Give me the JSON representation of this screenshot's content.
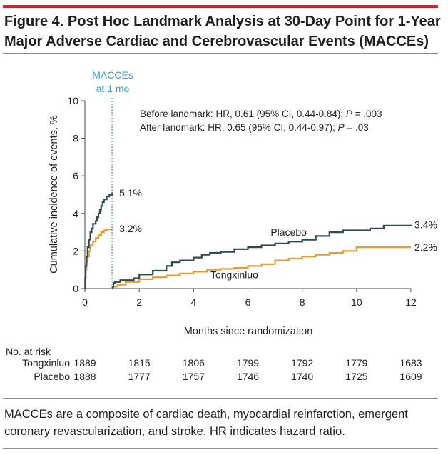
{
  "header": {
    "title": "Figure 4. Post Hoc Landmark Analysis at 30-Day Point for 1-Year Major Adverse Cardiac and Cerebrovascular Events (MACCEs)"
  },
  "footer": {
    "note": "MACCEs are a composite of cardiac death, myocardial reinfarction, emergent coronary revascularization, and stroke. HR indicates hazard ratio."
  },
  "colors": {
    "accent": "#d6202a",
    "placebo": "#2e4a52",
    "tongxinluo": "#e59a33",
    "landmark": "#3aa0c9"
  },
  "chart_data": {
    "type": "line",
    "title": "",
    "xlabel": "Months since randomization",
    "ylabel": "Cumulative incidence of events, %",
    "xlim": [
      0,
      12
    ],
    "ylim": [
      0,
      10
    ],
    "xticks": [
      "0",
      "2",
      "4",
      "6",
      "8",
      "10",
      "12"
    ],
    "yticks": [
      "0",
      "2",
      "4",
      "6",
      "8",
      "10"
    ],
    "landmark": {
      "x": 1,
      "label_line1": "MACCEs",
      "label_line2": "at 1 mo"
    },
    "annotations": {
      "before_prefix": "Before landmark: HR, 0.61 (95% CI, 0.44-0.84); ",
      "before_p_italic": "P",
      "before_p_rest": " = .003",
      "after_prefix": "After landmark: HR, 0.65 (95% CI, 0.44-0.97); ",
      "after_p_italic": "P",
      "after_p_rest": " = .03"
    },
    "series": [
      {
        "name": "Placebo",
        "color": "#2e4a52",
        "end_label_early": "5.1%",
        "end_label_late": "3.4%",
        "early": [
          [
            0,
            0
          ],
          [
            0.01,
            0.6
          ],
          [
            0.03,
            1.2
          ],
          [
            0.06,
            1.7
          ],
          [
            0.1,
            2.2
          ],
          [
            0.15,
            2.6
          ],
          [
            0.2,
            3.0
          ],
          [
            0.25,
            3.2
          ],
          [
            0.3,
            3.45
          ],
          [
            0.4,
            3.6
          ],
          [
            0.45,
            3.8
          ],
          [
            0.5,
            4.0
          ],
          [
            0.55,
            4.2
          ],
          [
            0.6,
            4.4
          ],
          [
            0.65,
            4.6
          ],
          [
            0.7,
            4.75
          ],
          [
            0.8,
            4.9
          ],
          [
            0.9,
            5.0
          ],
          [
            1.0,
            5.1
          ]
        ],
        "late": [
          [
            1.0,
            0
          ],
          [
            1.02,
            0.1
          ],
          [
            1.05,
            0.3
          ],
          [
            1.1,
            0.35
          ],
          [
            1.3,
            0.45
          ],
          [
            1.8,
            0.55
          ],
          [
            2.0,
            0.75
          ],
          [
            2.5,
            0.95
          ],
          [
            3.0,
            1.2
          ],
          [
            3.2,
            1.4
          ],
          [
            3.5,
            1.5
          ],
          [
            4.0,
            1.65
          ],
          [
            4.3,
            1.8
          ],
          [
            4.6,
            1.9
          ],
          [
            5.0,
            1.95
          ],
          [
            5.5,
            2.1
          ],
          [
            6.0,
            2.2
          ],
          [
            6.5,
            2.3
          ],
          [
            7.0,
            2.4
          ],
          [
            7.5,
            2.5
          ],
          [
            8.0,
            2.6
          ],
          [
            8.5,
            2.8
          ],
          [
            9.0,
            3.0
          ],
          [
            9.5,
            3.1
          ],
          [
            10.0,
            3.1
          ],
          [
            10.5,
            3.2
          ],
          [
            11.0,
            3.35
          ],
          [
            12.0,
            3.4
          ]
        ]
      },
      {
        "name": "Tongxinluo",
        "color": "#e59a33",
        "end_label_early": "3.2%",
        "end_label_late": "2.2%",
        "early": [
          [
            0,
            0
          ],
          [
            0.01,
            0.5
          ],
          [
            0.03,
            1.0
          ],
          [
            0.06,
            1.4
          ],
          [
            0.1,
            1.7
          ],
          [
            0.15,
            2.0
          ],
          [
            0.2,
            2.3
          ],
          [
            0.3,
            2.5
          ],
          [
            0.4,
            2.7
          ],
          [
            0.5,
            2.85
          ],
          [
            0.6,
            3.0
          ],
          [
            0.7,
            3.1
          ],
          [
            0.8,
            3.15
          ],
          [
            1.0,
            3.2
          ]
        ],
        "late": [
          [
            1.0,
            0
          ],
          [
            1.05,
            0.1
          ],
          [
            1.2,
            0.2
          ],
          [
            1.5,
            0.35
          ],
          [
            2.0,
            0.5
          ],
          [
            2.5,
            0.6
          ],
          [
            3.0,
            0.7
          ],
          [
            3.5,
            0.8
          ],
          [
            4.0,
            0.9
          ],
          [
            4.5,
            1.0
          ],
          [
            5.0,
            1.05
          ],
          [
            5.5,
            1.1
          ],
          [
            6.0,
            1.2
          ],
          [
            6.5,
            1.3
          ],
          [
            7.0,
            1.5
          ],
          [
            7.5,
            1.6
          ],
          [
            8.0,
            1.7
          ],
          [
            8.5,
            1.8
          ],
          [
            9.0,
            1.9
          ],
          [
            9.5,
            2.0
          ],
          [
            10.0,
            2.2
          ],
          [
            12.0,
            2.2
          ]
        ]
      }
    ],
    "series_labels": [
      {
        "text": "Placebo",
        "x": 7.5,
        "y": 3.0
      },
      {
        "text": "Tongxinluo",
        "x": 5.5,
        "y": 0.75
      }
    ],
    "risk_table": {
      "title": "No. at risk",
      "rows": [
        {
          "name": "Tongxinluo",
          "values": [
            "1889",
            "1815",
            "1806",
            "1799",
            "1792",
            "1779",
            "1683"
          ]
        },
        {
          "name": "Placebo",
          "values": [
            "1888",
            "1777",
            "1757",
            "1746",
            "1740",
            "1725",
            "1609"
          ]
        }
      ],
      "x": [
        0,
        2,
        4,
        6,
        8,
        10,
        12
      ]
    }
  }
}
